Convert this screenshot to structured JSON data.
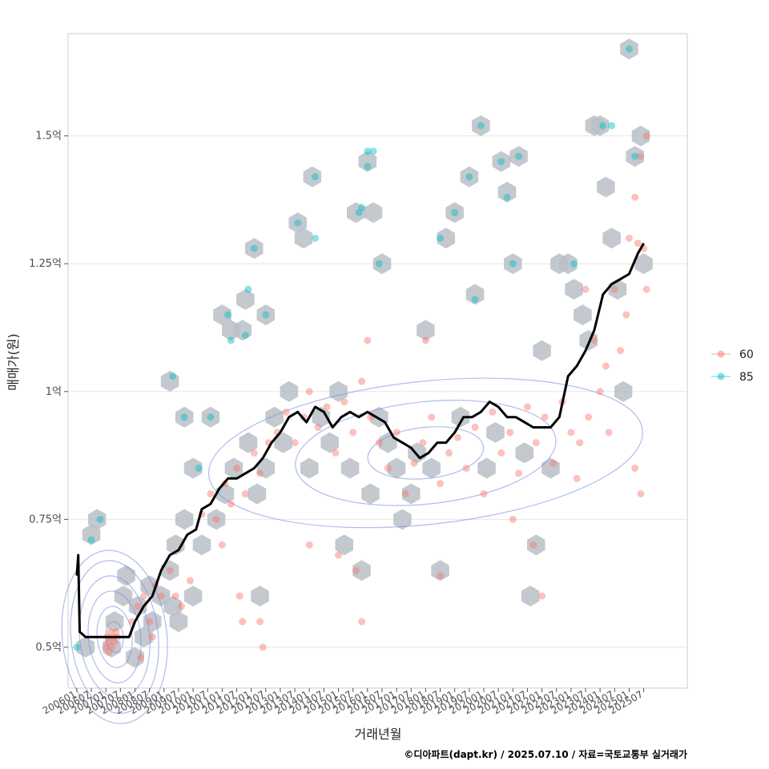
{
  "chart_data": {
    "type": "scatter",
    "title": "",
    "xlabel": "거래년월",
    "ylabel": "매매가(원)",
    "caption": "©디아파트(dapt.kr) / 2025.07.10 / 자료=국토교통부 실거래가",
    "grid": true,
    "xlim": [
      2005.7,
      2027.0
    ],
    "ylim": [
      0.42,
      1.7
    ],
    "y_ticks": [
      {
        "value": 0.5,
        "label": "0.5억"
      },
      {
        "value": 0.75,
        "label": "0.75억"
      },
      {
        "value": 1.0,
        "label": "1억"
      },
      {
        "value": 1.25,
        "label": "1.25억"
      },
      {
        "value": 1.5,
        "label": "1.5억"
      }
    ],
    "x_ticks": [
      "200601",
      "200607",
      "200701",
      "200707",
      "200801",
      "200807",
      "200901",
      "200907",
      "201001",
      "201007",
      "201101",
      "201107",
      "201201",
      "201207",
      "201301",
      "201307",
      "201401",
      "201407",
      "201501",
      "201507",
      "201601",
      "201607",
      "201701",
      "201707",
      "201801",
      "201807",
      "201901",
      "201907",
      "202001",
      "202007",
      "202101",
      "202107",
      "202201",
      "202207",
      "202301",
      "202307",
      "202401",
      "202407",
      "202501",
      "202507"
    ],
    "legend": {
      "position": "right",
      "entries": [
        {
          "label": "60",
          "color": "#F8766D"
        },
        {
          "label": "85",
          "color": "#00BFC4"
        }
      ]
    },
    "series": [
      {
        "name": "60",
        "color": "#F8766D",
        "points": [
          [
            2007.0,
            0.5
          ],
          [
            2007.05,
            0.52
          ],
          [
            2007.1,
            0.51
          ],
          [
            2007.15,
            0.53
          ],
          [
            2007.2,
            0.5
          ],
          [
            2007.25,
            0.52
          ],
          [
            2007.3,
            0.51
          ],
          [
            2007.35,
            0.53
          ],
          [
            2007.1,
            0.49
          ],
          [
            2007.4,
            0.52
          ],
          [
            2007.9,
            0.55
          ],
          [
            2008.1,
            0.58
          ],
          [
            2008.3,
            0.6
          ],
          [
            2008.5,
            0.55
          ],
          [
            2008.7,
            0.62
          ],
          [
            2008.9,
            0.6
          ],
          [
            2009.2,
            0.65
          ],
          [
            2009.4,
            0.6
          ],
          [
            2009.6,
            0.58
          ],
          [
            2009.9,
            0.63
          ],
          [
            2008.2,
            0.48
          ],
          [
            2008.6,
            0.52
          ],
          [
            2010.3,
            0.76
          ],
          [
            2010.6,
            0.8
          ],
          [
            2010.8,
            0.75
          ],
          [
            2011.1,
            0.82
          ],
          [
            2011.3,
            0.78
          ],
          [
            2011.5,
            0.85
          ],
          [
            2011.8,
            0.8
          ],
          [
            2012.1,
            0.88
          ],
          [
            2012.3,
            0.84
          ],
          [
            2012.6,
            0.9
          ],
          [
            2012.9,
            0.92
          ],
          [
            2011.0,
            0.7
          ],
          [
            2011.6,
            0.6
          ],
          [
            2011.7,
            0.55
          ],
          [
            2012.3,
            0.55
          ],
          [
            2012.4,
            0.5
          ],
          [
            2013.2,
            0.96
          ],
          [
            2013.5,
            0.9
          ],
          [
            2013.8,
            0.95
          ],
          [
            2014.0,
            1.0
          ],
          [
            2014.3,
            0.93
          ],
          [
            2014.6,
            0.97
          ],
          [
            2014.9,
            0.88
          ],
          [
            2015.2,
            0.98
          ],
          [
            2015.5,
            0.92
          ],
          [
            2015.8,
            1.02
          ],
          [
            2016.1,
            0.95
          ],
          [
            2016.4,
            0.9
          ],
          [
            2016.7,
            0.85
          ],
          [
            2017.0,
            0.92
          ],
          [
            2017.3,
            0.8
          ],
          [
            2017.6,
            0.86
          ],
          [
            2017.9,
            0.9
          ],
          [
            2018.2,
            0.95
          ],
          [
            2018.5,
            0.82
          ],
          [
            2018.8,
            0.88
          ],
          [
            2019.1,
            0.91
          ],
          [
            2019.4,
            0.85
          ],
          [
            2019.7,
            0.93
          ],
          [
            2020.0,
            0.8
          ],
          [
            2020.3,
            0.96
          ],
          [
            2020.6,
            0.88
          ],
          [
            2020.9,
            0.92
          ],
          [
            2021.2,
            0.84
          ],
          [
            2021.5,
            0.97
          ],
          [
            2021.8,
            0.9
          ],
          [
            2022.1,
            0.95
          ],
          [
            2022.4,
            0.86
          ],
          [
            2022.7,
            0.98
          ],
          [
            2023.0,
            0.92
          ],
          [
            2023.3,
            0.9
          ],
          [
            2023.6,
            0.95
          ],
          [
            2014.0,
            0.7
          ],
          [
            2015.0,
            0.68
          ],
          [
            2015.6,
            0.65
          ],
          [
            2015.8,
            0.55
          ],
          [
            2016.0,
            1.1
          ],
          [
            2018.0,
            1.1
          ],
          [
            2018.5,
            0.64
          ],
          [
            2021.0,
            0.75
          ],
          [
            2021.7,
            0.7
          ],
          [
            2022.0,
            0.6
          ],
          [
            2023.8,
            1.1
          ],
          [
            2024.0,
            1.0
          ],
          [
            2024.2,
            1.05
          ],
          [
            2024.3,
            0.92
          ],
          [
            2024.5,
            1.2
          ],
          [
            2024.7,
            1.08
          ],
          [
            2024.9,
            1.15
          ],
          [
            2025.0,
            1.3
          ],
          [
            2025.2,
            1.38
          ],
          [
            2025.3,
            1.29
          ],
          [
            2025.4,
            1.46
          ],
          [
            2025.5,
            1.28
          ],
          [
            2025.6,
            1.5
          ],
          [
            2025.6,
            1.2
          ],
          [
            2025.2,
            0.85
          ],
          [
            2025.4,
            0.8
          ],
          [
            2023.2,
            0.83
          ],
          [
            2023.5,
            1.2
          ]
        ]
      },
      {
        "name": "85",
        "color": "#00BFC4",
        "points": [
          [
            2006.0,
            0.5
          ],
          [
            2006.5,
            0.71
          ],
          [
            2006.8,
            0.75
          ],
          [
            2009.3,
            1.03
          ],
          [
            2009.7,
            0.95
          ],
          [
            2010.2,
            0.85
          ],
          [
            2010.6,
            0.95
          ],
          [
            2011.2,
            1.15
          ],
          [
            2011.3,
            1.1
          ],
          [
            2011.8,
            1.11
          ],
          [
            2011.9,
            1.2
          ],
          [
            2012.1,
            1.28
          ],
          [
            2012.5,
            1.15
          ],
          [
            2013.6,
            1.33
          ],
          [
            2014.2,
            1.42
          ],
          [
            2014.2,
            1.3
          ],
          [
            2015.7,
            1.35
          ],
          [
            2015.8,
            1.36
          ],
          [
            2016.0,
            1.47
          ],
          [
            2016.0,
            1.44
          ],
          [
            2016.2,
            1.47
          ],
          [
            2016.4,
            1.25
          ],
          [
            2018.5,
            1.3
          ],
          [
            2019.0,
            1.35
          ],
          [
            2019.5,
            1.42
          ],
          [
            2019.7,
            1.18
          ],
          [
            2019.9,
            1.52
          ],
          [
            2020.6,
            1.45
          ],
          [
            2020.8,
            1.38
          ],
          [
            2021.0,
            1.25
          ],
          [
            2021.2,
            1.46
          ],
          [
            2023.1,
            1.25
          ],
          [
            2024.1,
            1.52
          ],
          [
            2024.4,
            1.52
          ],
          [
            2025.0,
            1.67
          ],
          [
            2025.2,
            1.46
          ]
        ]
      },
      {
        "name": "moving-average",
        "color": "#000000",
        "points": [
          [
            2006.0,
            0.64
          ],
          [
            2006.05,
            0.68
          ],
          [
            2006.1,
            0.53
          ],
          [
            2006.3,
            0.52
          ],
          [
            2006.8,
            0.52
          ],
          [
            2007.3,
            0.52
          ],
          [
            2007.8,
            0.52
          ],
          [
            2008.0,
            0.55
          ],
          [
            2008.3,
            0.58
          ],
          [
            2008.6,
            0.6
          ],
          [
            2008.9,
            0.65
          ],
          [
            2009.2,
            0.68
          ],
          [
            2009.5,
            0.69
          ],
          [
            2009.8,
            0.72
          ],
          [
            2010.1,
            0.73
          ],
          [
            2010.3,
            0.77
          ],
          [
            2010.6,
            0.78
          ],
          [
            2010.9,
            0.81
          ],
          [
            2011.2,
            0.83
          ],
          [
            2011.5,
            0.83
          ],
          [
            2011.8,
            0.84
          ],
          [
            2012.1,
            0.85
          ],
          [
            2012.4,
            0.87
          ],
          [
            2012.7,
            0.9
          ],
          [
            2013.0,
            0.92
          ],
          [
            2013.3,
            0.95
          ],
          [
            2013.6,
            0.96
          ],
          [
            2013.9,
            0.94
          ],
          [
            2014.2,
            0.97
          ],
          [
            2014.5,
            0.96
          ],
          [
            2014.8,
            0.93
          ],
          [
            2015.1,
            0.95
          ],
          [
            2015.4,
            0.96
          ],
          [
            2015.7,
            0.95
          ],
          [
            2016.0,
            0.96
          ],
          [
            2016.3,
            0.95
          ],
          [
            2016.6,
            0.94
          ],
          [
            2016.9,
            0.91
          ],
          [
            2017.2,
            0.9
          ],
          [
            2017.5,
            0.89
          ],
          [
            2017.8,
            0.87
          ],
          [
            2018.1,
            0.88
          ],
          [
            2018.4,
            0.9
          ],
          [
            2018.7,
            0.9
          ],
          [
            2019.0,
            0.92
          ],
          [
            2019.3,
            0.95
          ],
          [
            2019.6,
            0.95
          ],
          [
            2019.9,
            0.96
          ],
          [
            2020.2,
            0.98
          ],
          [
            2020.5,
            0.97
          ],
          [
            2020.8,
            0.95
          ],
          [
            2021.1,
            0.95
          ],
          [
            2021.4,
            0.94
          ],
          [
            2021.7,
            0.93
          ],
          [
            2022.0,
            0.93
          ],
          [
            2022.3,
            0.93
          ],
          [
            2022.6,
            0.95
          ],
          [
            2022.9,
            1.03
          ],
          [
            2023.2,
            1.05
          ],
          [
            2023.5,
            1.08
          ],
          [
            2023.8,
            1.12
          ],
          [
            2024.1,
            1.19
          ],
          [
            2024.4,
            1.21
          ],
          [
            2024.7,
            1.22
          ],
          [
            2025.0,
            1.23
          ],
          [
            2025.3,
            1.27
          ],
          [
            2025.5,
            1.29
          ]
        ]
      }
    ],
    "hexbin_centers": [
      [
        2006.3,
        0.5
      ],
      [
        2006.5,
        0.72
      ],
      [
        2006.7,
        0.75
      ],
      [
        2007.2,
        0.5
      ],
      [
        2007.3,
        0.55
      ],
      [
        2007.6,
        0.6
      ],
      [
        2007.7,
        0.64
      ],
      [
        2008.0,
        0.48
      ],
      [
        2008.1,
        0.58
      ],
      [
        2008.3,
        0.52
      ],
      [
        2008.5,
        0.62
      ],
      [
        2008.6,
        0.55
      ],
      [
        2008.9,
        0.6
      ],
      [
        2009.2,
        0.65
      ],
      [
        2009.3,
        0.58
      ],
      [
        2009.5,
        0.55
      ],
      [
        2009.2,
        1.02
      ],
      [
        2009.4,
        0.7
      ],
      [
        2009.7,
        0.75
      ],
      [
        2009.7,
        0.95
      ],
      [
        2010.0,
        0.6
      ],
      [
        2010.0,
        0.85
      ],
      [
        2010.3,
        0.7
      ],
      [
        2010.6,
        0.95
      ],
      [
        2010.8,
        0.75
      ],
      [
        2011.0,
        1.15
      ],
      [
        2011.1,
        0.8
      ],
      [
        2011.3,
        1.12
      ],
      [
        2011.4,
        0.85
      ],
      [
        2011.7,
        1.12
      ],
      [
        2011.8,
        1.18
      ],
      [
        2011.9,
        0.9
      ],
      [
        2012.1,
        1.28
      ],
      [
        2012.2,
        0.8
      ],
      [
        2012.3,
        0.6
      ],
      [
        2012.5,
        1.15
      ],
      [
        2012.5,
        0.85
      ],
      [
        2012.8,
        0.95
      ],
      [
        2013.1,
        0.9
      ],
      [
        2013.3,
        1.0
      ],
      [
        2013.6,
        1.33
      ],
      [
        2013.8,
        1.3
      ],
      [
        2014.1,
        1.42
      ],
      [
        2014.0,
        0.85
      ],
      [
        2014.4,
        0.95
      ],
      [
        2014.7,
        0.9
      ],
      [
        2015.0,
        1.0
      ],
      [
        2015.2,
        0.7
      ],
      [
        2015.4,
        0.85
      ],
      [
        2015.6,
        1.35
      ],
      [
        2015.8,
        0.65
      ],
      [
        2016.0,
        1.45
      ],
      [
        2016.1,
        0.8
      ],
      [
        2016.2,
        1.35
      ],
      [
        2016.4,
        0.95
      ],
      [
        2016.5,
        1.25
      ],
      [
        2016.7,
        0.9
      ],
      [
        2017.0,
        0.85
      ],
      [
        2017.2,
        0.75
      ],
      [
        2017.5,
        0.8
      ],
      [
        2017.7,
        0.88
      ],
      [
        2018.0,
        1.12
      ],
      [
        2018.2,
        0.85
      ],
      [
        2018.5,
        0.65
      ],
      [
        2018.7,
        1.3
      ],
      [
        2019.0,
        1.35
      ],
      [
        2019.2,
        0.95
      ],
      [
        2019.5,
        1.42
      ],
      [
        2019.7,
        1.19
      ],
      [
        2019.9,
        1.52
      ],
      [
        2020.1,
        0.85
      ],
      [
        2020.4,
        0.92
      ],
      [
        2020.6,
        1.45
      ],
      [
        2020.8,
        1.39
      ],
      [
        2021.0,
        1.25
      ],
      [
        2021.2,
        1.46
      ],
      [
        2021.4,
        0.88
      ],
      [
        2021.6,
        0.6
      ],
      [
        2021.8,
        0.7
      ],
      [
        2022.0,
        1.08
      ],
      [
        2022.3,
        0.85
      ],
      [
        2022.6,
        1.25
      ],
      [
        2022.9,
        1.25
      ],
      [
        2023.1,
        1.2
      ],
      [
        2023.4,
        1.15
      ],
      [
        2023.6,
        1.1
      ],
      [
        2023.8,
        1.52
      ],
      [
        2024.0,
        1.52
      ],
      [
        2024.2,
        1.4
      ],
      [
        2024.4,
        1.3
      ],
      [
        2024.6,
        1.2
      ],
      [
        2024.8,
        1.0
      ],
      [
        2025.0,
        1.67
      ],
      [
        2025.2,
        1.46
      ],
      [
        2025.4,
        1.5
      ],
      [
        2025.5,
        1.25
      ]
    ],
    "density_contours": [
      {
        "cx": 2007.3,
        "cy": 0.52,
        "levels": [
          [
            0.3,
            0.03
          ],
          [
            0.6,
            0.06
          ],
          [
            0.9,
            0.09
          ],
          [
            1.2,
            0.12
          ],
          [
            1.5,
            0.15
          ],
          [
            1.8,
            0.17
          ]
        ]
      },
      {
        "cx": 2018.0,
        "cy": 0.88,
        "levels": [
          [
            2.0,
            0.05
          ],
          [
            4.5,
            0.1
          ],
          [
            7.5,
            0.14
          ]
        ]
      }
    ]
  }
}
